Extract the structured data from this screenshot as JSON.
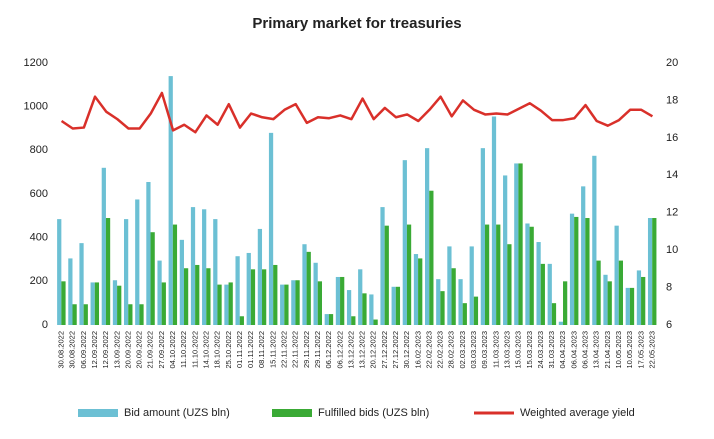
{
  "chart_data": {
    "type": "bar_line",
    "title": "Primary market for treasuries",
    "categories": [
      "30.08.2022",
      "30.08.2022",
      "06.09.2022",
      "12.09.2022",
      "12.09.2022",
      "13.09.2022",
      "20.09.2022",
      "20.09.2022",
      "21.09.2022",
      "27.09.2022",
      "04.10.2022",
      "11.10.2022",
      "11.10.2022",
      "14.10.2022",
      "18.10.2022",
      "25.10.2022",
      "01.11.2022",
      "01.11.2022",
      "08.11.2022",
      "15.11.2022",
      "22.11.2022",
      "22.11.2022",
      "29.11.2022",
      "29.11.2022",
      "06.12.2022",
      "06.12.2022",
      "13.12.2022",
      "13.12.2022",
      "20.12.2022",
      "27.12.2022",
      "27.12.2022",
      "30.12.2022",
      "16.02.2023",
      "22.02.2023",
      "22.02.2023",
      "28.02.2023",
      "02.03.2023",
      "03.03.2023",
      "09.03.2023",
      "11.03.2023",
      "13.03.2023",
      "15.03.2023",
      "15.03.2023",
      "24.03.2023",
      "31.03.2023",
      "04.04.2023",
      "06.04.2023",
      "06.04.2023",
      "13.04.2023",
      "21.04.2023",
      "10.05.2023",
      "10.05.2023",
      "17.05.2023",
      "22.05.2023"
    ],
    "series": [
      {
        "name": "Bid amount (UZS bln)",
        "type": "bar",
        "color": "#6cc0d4",
        "values": [
          485,
          305,
          375,
          195,
          720,
          205,
          485,
          575,
          655,
          295,
          1140,
          390,
          540,
          530,
          485,
          185,
          315,
          330,
          440,
          880,
          185,
          205,
          370,
          285,
          50,
          220,
          160,
          255,
          140,
          540,
          175,
          755,
          325,
          810,
          210,
          360,
          210,
          360,
          810,
          955,
          685,
          740,
          465,
          380,
          280,
          15,
          510,
          635,
          775,
          230,
          455,
          170,
          250,
          490
        ]
      },
      {
        "name": "Fulfilled bids (UZS bln)",
        "type": "bar",
        "color": "#3aaa35",
        "values": [
          200,
          95,
          95,
          195,
          490,
          180,
          95,
          95,
          425,
          195,
          460,
          260,
          275,
          260,
          185,
          195,
          40,
          255,
          255,
          275,
          185,
          205,
          335,
          200,
          50,
          220,
          40,
          145,
          25,
          455,
          175,
          460,
          305,
          615,
          155,
          260,
          100,
          130,
          460,
          460,
          370,
          740,
          450,
          280,
          100,
          200,
          495,
          490,
          295,
          200,
          295,
          170,
          220,
          490
        ]
      },
      {
        "name": "Weighted average yield",
        "type": "line",
        "axis": "y2",
        "color": "#d9302a",
        "values": [
          16.9,
          16.5,
          16.55,
          18.2,
          17.4,
          17.0,
          16.5,
          16.5,
          17.3,
          18.4,
          16.4,
          16.7,
          16.3,
          17.2,
          16.7,
          17.8,
          16.55,
          17.3,
          17.1,
          17.0,
          17.5,
          17.8,
          16.8,
          17.1,
          17.05,
          17.2,
          17.0,
          18.1,
          17.0,
          17.6,
          17.1,
          17.25,
          16.9,
          17.5,
          18.2,
          17.15,
          18.0,
          17.5,
          17.25,
          17.3,
          17.25,
          17.55,
          17.85,
          17.45,
          16.95,
          16.95,
          17.05,
          17.75,
          16.9,
          16.65,
          16.95,
          17.5,
          17.5,
          17.15
        ]
      }
    ],
    "ylim": [
      0,
      1200
    ],
    "yticks": [
      0,
      200,
      400,
      600,
      800,
      1000,
      1200
    ],
    "y2lim": [
      6,
      20
    ],
    "y2ticks": [
      6,
      8,
      10,
      12,
      14,
      16,
      18,
      20
    ],
    "legend": "bottom"
  }
}
